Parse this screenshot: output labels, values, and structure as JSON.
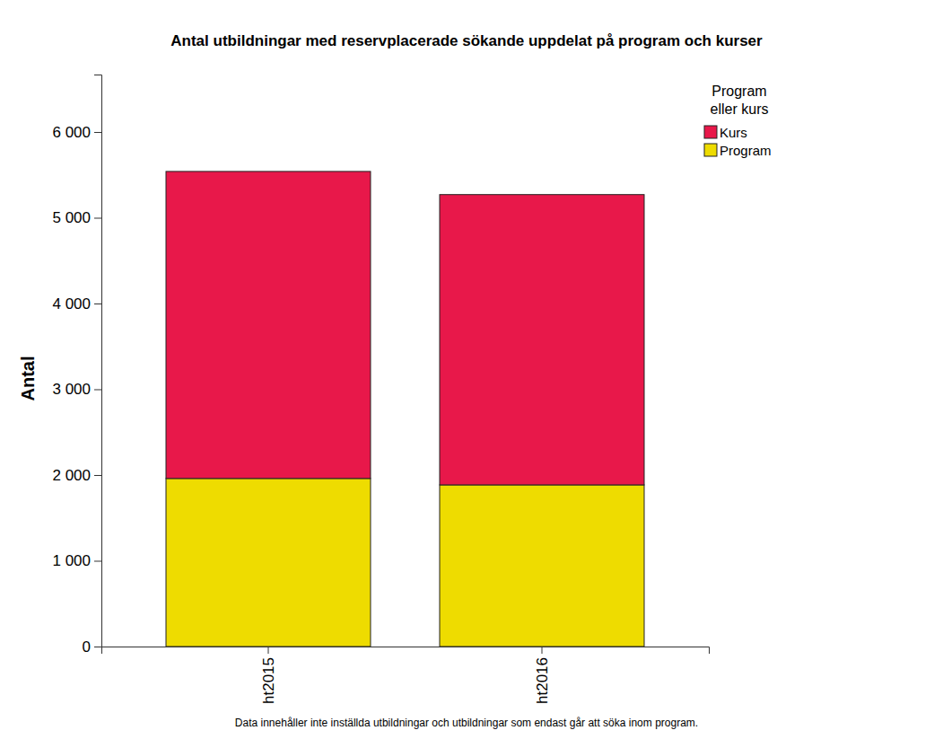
{
  "chart_data": {
    "type": "bar",
    "stacked": true,
    "title": "Antal utbildningar med reservplacerade sökande uppdelat på program och kurser",
    "y_label": "Antal",
    "legend_title": [
      "Program",
      "eller kurs"
    ],
    "legend": "right",
    "footnote": "Data innehåller inte inställda utbildningar och utbildningar som endast går att söka inom program.",
    "categories": [
      "ht2015",
      "ht2016"
    ],
    "series": [
      {
        "name": "Program",
        "color": "#eedc00",
        "values": [
          1960,
          1885
        ]
      },
      {
        "name": "Kurs",
        "color": "#e8184a",
        "values": [
          3580,
          3385
        ]
      }
    ],
    "ylim": [
      0,
      6670
    ],
    "yticks": [
      0,
      {
        "value": 1000,
        "label": "1 000"
      },
      {
        "value": 2000,
        "label": "2 000"
      },
      {
        "value": 3000,
        "label": "3 000"
      },
      {
        "value": 4000,
        "label": "4 000"
      },
      {
        "value": 5000,
        "label": "5 000"
      },
      {
        "value": 6000,
        "label": "6 000"
      }
    ],
    "grid": false
  }
}
